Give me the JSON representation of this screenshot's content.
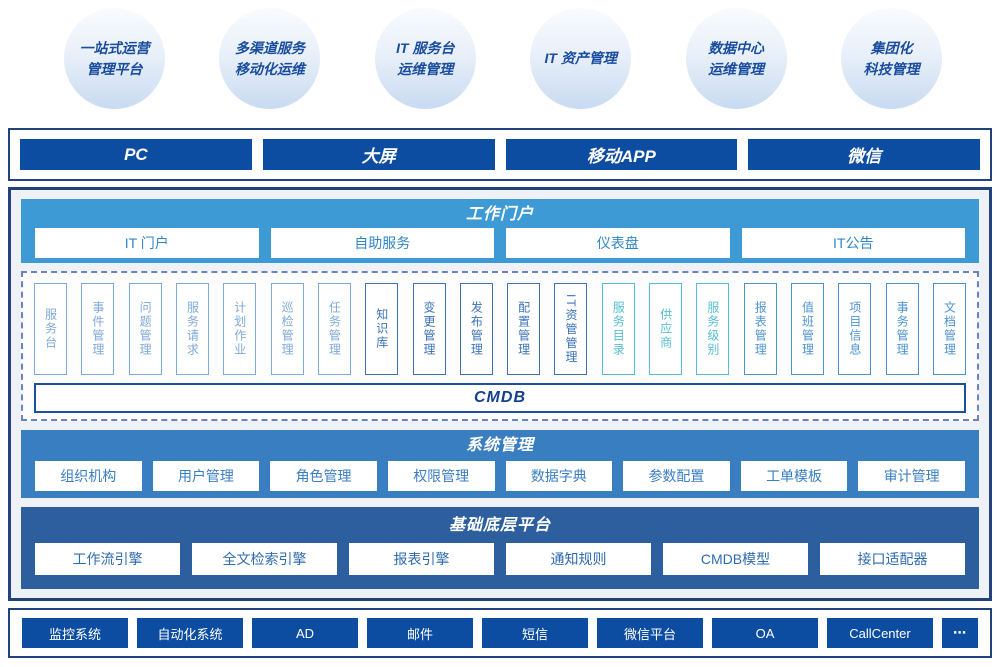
{
  "bubbles": [
    "一站式运营\n管理平台",
    "多渠道服务\n移动化运维",
    "IT 服务台\n运维管理",
    "IT 资产管理",
    "数据中心\n运维管理",
    "集团化\n科技管理"
  ],
  "channels": {
    "items": [
      "PC",
      "大屏",
      "移动APP",
      "微信"
    ]
  },
  "portal": {
    "title": "工作门户",
    "buttons": [
      "IT 门户",
      "自助服务",
      "仪表盘",
      "IT公告"
    ]
  },
  "itsm": {
    "modules": [
      {
        "label": "服务台",
        "tone": "light"
      },
      {
        "label": "事件管理",
        "tone": "light"
      },
      {
        "label": "问题管理",
        "tone": "light"
      },
      {
        "label": "服务请求",
        "tone": "light"
      },
      {
        "label": "计划作业",
        "tone": "light"
      },
      {
        "label": "巡检管理",
        "tone": "light"
      },
      {
        "label": "任务管理",
        "tone": "light"
      },
      {
        "label": "知识库",
        "tone": "dark"
      },
      {
        "label": "变更管理",
        "tone": "dark"
      },
      {
        "label": "发布管理",
        "tone": "dark"
      },
      {
        "label": "配置管理",
        "tone": "dark"
      },
      {
        "label": "IT资管管理",
        "tone": "dark"
      },
      {
        "label": "服务目录",
        "tone": "teal"
      },
      {
        "label": "供应商",
        "tone": "teal"
      },
      {
        "label": "服务级别",
        "tone": "teal"
      },
      {
        "label": "报表管理",
        "tone": "medium"
      },
      {
        "label": "值班管理",
        "tone": "medium"
      },
      {
        "label": "项目信息",
        "tone": "medium"
      },
      {
        "label": "事务管理",
        "tone": "medium"
      },
      {
        "label": "文档管理",
        "tone": "medium"
      }
    ],
    "cmdb": "CMDB"
  },
  "system": {
    "title": "系统管理",
    "buttons": [
      "组织机构",
      "用户管理",
      "角色管理",
      "权限管理",
      "数据字典",
      "参数配置",
      "工单模板",
      "审计管理"
    ]
  },
  "platform": {
    "title": "基础底层平台",
    "buttons": [
      "工作流引擎",
      "全文检索引擎",
      "报表引擎",
      "通知规则",
      "CMDB模型",
      "接口适配器"
    ]
  },
  "integrations": {
    "items": [
      "监控系统",
      "自动化系统",
      "AD",
      "邮件",
      "短信",
      "微信平台",
      "OA",
      "CallCenter",
      "⋯"
    ]
  },
  "colors": {
    "portal_bg": "#3d9ad5",
    "system_bg": "#3a7ec2",
    "platform_bg": "#2d5f9e",
    "button_navy": "#0d4da1",
    "border_navy": "#22427c",
    "bubble_text": "#1a4d9e",
    "module_light": "#7fa9da",
    "module_dark": "#3c73b8",
    "module_teal": "#54bed2",
    "module_medium": "#4d93d2",
    "cmdb_text": "#123f8f"
  }
}
